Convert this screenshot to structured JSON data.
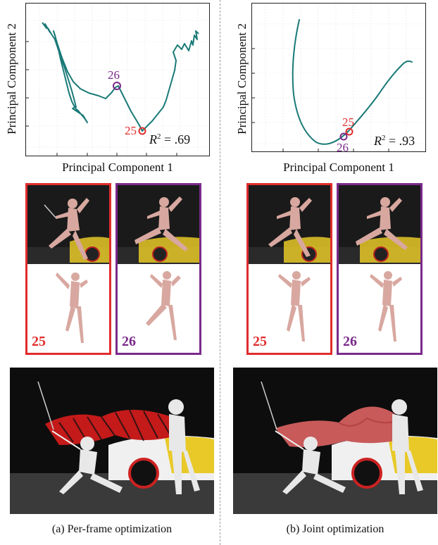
{
  "chart_data": [
    {
      "type": "line",
      "xlabel": "Principal Component 1",
      "ylabel": "Principal Component 2",
      "annotations": [
        {
          "text": "R² = .69"
        },
        {
          "frame": "26",
          "color": "#7a2a8a"
        },
        {
          "frame": "25",
          "color": "#e02c2c"
        }
      ],
      "grid": true
    },
    {
      "type": "line",
      "xlabel": "Principal Component 1",
      "ylabel": "Principal Component 2",
      "annotations": [
        {
          "text": "R² = .93"
        },
        {
          "frame": "25",
          "color": "#e02c2c"
        },
        {
          "frame": "26",
          "color": "#7a2a8a"
        }
      ],
      "grid": true
    }
  ],
  "left": {
    "r2_label": "R",
    "r2_sup": "2",
    "r2_value": " = .69",
    "frame_a": "25",
    "frame_b": "26",
    "caption": "(a) Per-frame optimization"
  },
  "right": {
    "r2_label": "R",
    "r2_sup": "2",
    "r2_value": " = .93",
    "frame_a": "25",
    "frame_b": "26",
    "caption": "(b) Joint optimization"
  },
  "axes": {
    "xlabel": "Principal Component 1",
    "ylabel": "Principal Component 2"
  },
  "colors": {
    "trajectory": "#1a7a78",
    "frame_25": "#e02c2c",
    "frame_26": "#7a2a8a"
  }
}
